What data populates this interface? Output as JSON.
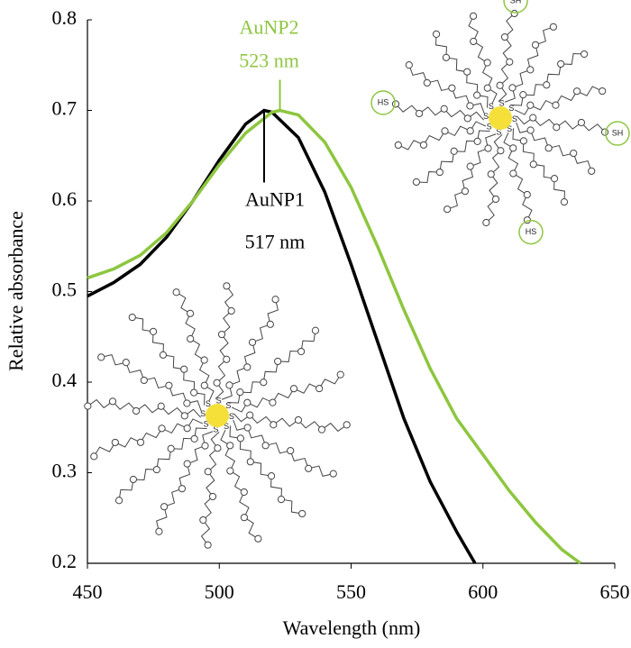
{
  "chart_data": {
    "type": "line",
    "xlabel": "Wavelength (nm)",
    "ylabel": "Relative absorbance",
    "xlim": [
      450,
      650
    ],
    "xticks": [
      450,
      500,
      550,
      600,
      650
    ],
    "ylim": [
      0.2,
      0.8
    ],
    "yticks": [
      0.2,
      0.3,
      0.4,
      0.5,
      0.6,
      0.7,
      0.8
    ],
    "grid": false,
    "series": [
      {
        "name": "AuNP1",
        "color": "#000000",
        "x": [
          450,
          460,
          470,
          480,
          490,
          500,
          510,
          517,
          520,
          530,
          540,
          550,
          560,
          570,
          580,
          590,
          597
        ],
        "values": [
          0.495,
          0.51,
          0.53,
          0.56,
          0.6,
          0.645,
          0.685,
          0.7,
          0.698,
          0.67,
          0.61,
          0.53,
          0.445,
          0.36,
          0.29,
          0.235,
          0.2
        ]
      },
      {
        "name": "AuNP2",
        "color": "#8dc63f",
        "x": [
          450,
          460,
          470,
          480,
          490,
          500,
          510,
          520,
          523,
          530,
          540,
          550,
          560,
          570,
          580,
          590,
          600,
          610,
          620,
          630,
          637
        ],
        "values": [
          0.515,
          0.525,
          0.54,
          0.565,
          0.6,
          0.64,
          0.675,
          0.698,
          0.7,
          0.695,
          0.665,
          0.615,
          0.55,
          0.48,
          0.415,
          0.36,
          0.32,
          0.28,
          0.245,
          0.215,
          0.2
        ]
      }
    ],
    "annotations": [
      {
        "series": 0,
        "x": 517,
        "name": "AuNP1",
        "label": "517 nm"
      },
      {
        "series": 1,
        "x": 523,
        "name": "AuNP2",
        "label": "523 nm"
      }
    ]
  },
  "illustration": {
    "sulfur_label": "S",
    "thiol_labels": [
      "SH",
      "SH",
      "HS",
      "HS"
    ]
  }
}
